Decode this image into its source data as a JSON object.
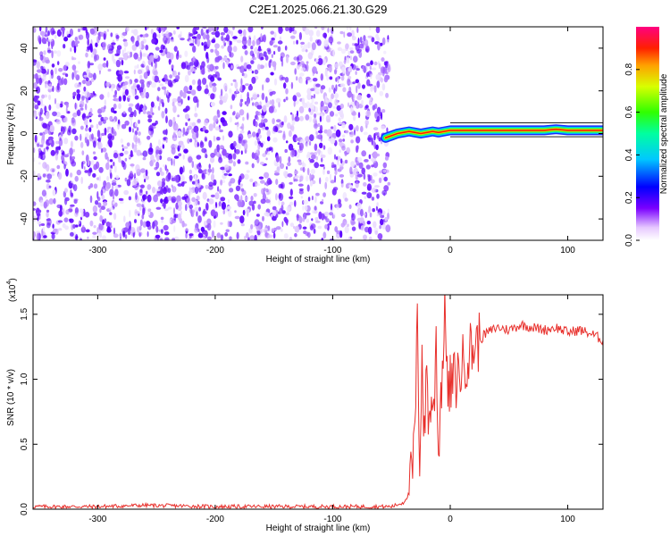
{
  "title": "C2E1.2025.066.21.30.G29",
  "chart_data": [
    {
      "type": "heatmap",
      "xlabel": "Height of straight line (km)",
      "ylabel": "Frequency (Hz)",
      "xlim": [
        -355,
        130
      ],
      "ylim": [
        -50,
        50
      ],
      "xticks": [
        -300,
        -200,
        -100,
        0,
        100
      ],
      "yticks": [
        -40,
        -20,
        0,
        20,
        40
      ],
      "noise_region_x": [
        -355,
        -52
      ],
      "signal_trace": {
        "x": [
          -55,
          -50,
          -45,
          -40,
          -35,
          -30,
          -25,
          -20,
          -15,
          -10,
          -5,
          0,
          20,
          40,
          60,
          80,
          90,
          100,
          130
        ],
        "freq": [
          -2,
          -1,
          0,
          0.5,
          1,
          0.5,
          0,
          0.5,
          1,
          0.5,
          1,
          1.5,
          1.5,
          1.5,
          1.5,
          1.5,
          2,
          1.5,
          1.5
        ]
      },
      "colorbar": {
        "label": "Normalized spectral amplitude",
        "range": [
          0.0,
          1.0
        ],
        "ticks": [
          0.0,
          0.2,
          0.4,
          0.6,
          0.8
        ]
      },
      "grid": false
    },
    {
      "type": "line",
      "xlabel": "Height of straight line (km)",
      "ylabel": "SNR (10 * v/v)",
      "yscale_label": "(x10",
      "yscale_exp": "4",
      "xlim": [
        -355,
        130
      ],
      "ylim": [
        0,
        1.65
      ],
      "xticks": [
        -300,
        -200,
        -100,
        0,
        100
      ],
      "yticks": [
        "0.0",
        "0.5",
        "1.0",
        "1.5"
      ],
      "series": [
        {
          "color": "#e8302c",
          "x": [
            -355,
            -300,
            -260,
            -200,
            -100,
            -50,
            -40,
            -35,
            -32,
            -30,
            -28,
            -26,
            -24,
            -22,
            -20,
            -18,
            -16,
            -14,
            -12,
            -10,
            -8,
            -6,
            -4,
            -2,
            0,
            5,
            10,
            15,
            20,
            30,
            40,
            50,
            60,
            70,
            80,
            90,
            100,
            110,
            120,
            130
          ],
          "y": [
            0.02,
            0.02,
            0.03,
            0.02,
            0.02,
            0.02,
            0.05,
            0.12,
            0.3,
            0.6,
            1.4,
            0.4,
            1.2,
            0.5,
            1.15,
            0.6,
            0.9,
            0.7,
            1.35,
            0.4,
            0.9,
            1.2,
            1.6,
            0.8,
            0.95,
            1.0,
            1.1,
            1.2,
            1.25,
            1.35,
            1.4,
            1.38,
            1.42,
            1.4,
            1.38,
            1.4,
            1.36,
            1.38,
            1.35,
            1.3
          ]
        }
      ]
    }
  ]
}
